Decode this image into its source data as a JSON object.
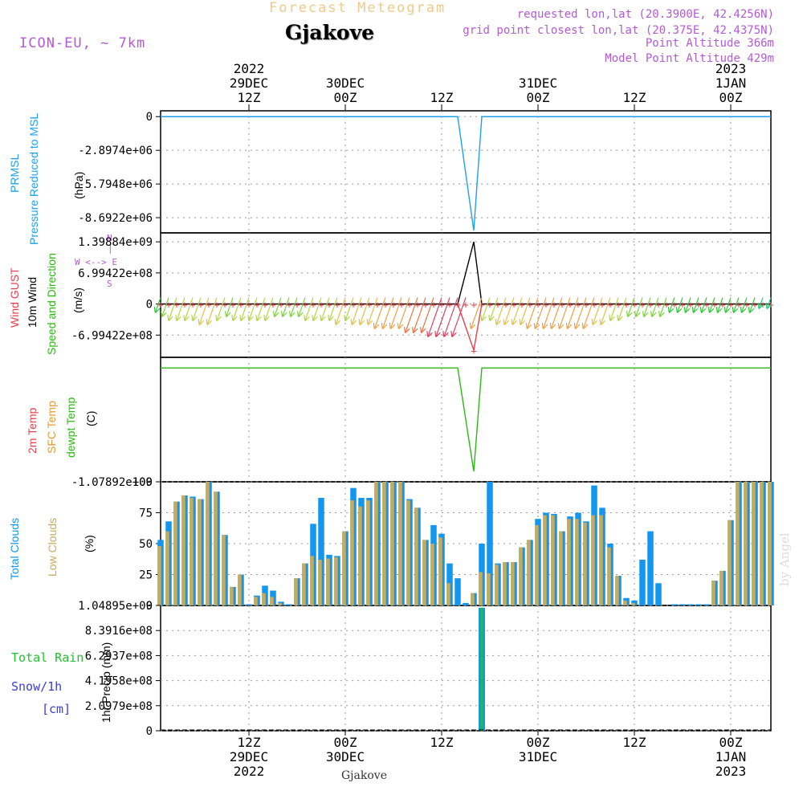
{
  "header": {
    "title": "Forecast Meteogram",
    "station": "Gjakove",
    "model": "ICON-EU, ~ 7km",
    "info_lines": [
      "requested lon,lat (20.3900E, 42.4256N)",
      "grid point closest lon,lat (20.375E, 42.4375N)",
      "Point Altitude 366m",
      "Model Point Altitude 429m"
    ],
    "bottom_station": "Gjakove",
    "watermark": "by Angel"
  },
  "time_axis": {
    "top_labels": [
      {
        "t": 12,
        "lines": [
          "2022",
          "29DEC",
          "12Z"
        ]
      },
      {
        "t": 24,
        "lines": [
          "",
          "30DEC",
          "00Z"
        ]
      },
      {
        "t": 36,
        "lines": [
          "",
          "",
          "12Z"
        ]
      },
      {
        "t": 48,
        "lines": [
          "",
          "31DEC",
          "00Z"
        ]
      },
      {
        "t": 60,
        "lines": [
          "",
          "",
          "12Z"
        ]
      },
      {
        "t": 72,
        "lines": [
          "2023",
          "1JAN",
          "00Z"
        ]
      }
    ],
    "bottom_labels": [
      {
        "t": 12,
        "lines": [
          "12Z",
          "29DEC",
          "2022"
        ]
      },
      {
        "t": 24,
        "lines": [
          "00Z",
          "30DEC",
          ""
        ]
      },
      {
        "t": 36,
        "lines": [
          "12Z",
          "",
          ""
        ]
      },
      {
        "t": 48,
        "lines": [
          "00Z",
          "31DEC",
          ""
        ]
      },
      {
        "t": 60,
        "lines": [
          "12Z",
          "",
          ""
        ]
      },
      {
        "t": 72,
        "lines": [
          "00Z",
          "1JAN",
          "2023"
        ]
      }
    ]
  },
  "panel_labels": {
    "pressure": {
      "line1": "PRMSL",
      "line2": "Pressure Reduced to MSL",
      "unit": "(hPa)"
    },
    "wind": {
      "gust": "Wind GUST",
      "wind10": "10m Wind",
      "speed": "Speed and Direction",
      "unit": "(m/s)",
      "compass_n": "N",
      "compass_bar": "|",
      "compass_we": "W <--> E",
      "compass_s": "S"
    },
    "temp": {
      "t2m": "2m Temp",
      "sfc": "SFC Temp",
      "dewpt": "dewpt Temp",
      "unit": "(C)"
    },
    "clouds": {
      "total": "Total Clouds",
      "low": "Low Clouds",
      "unit": "(%)"
    },
    "precip": {
      "rain": "Total Rain",
      "snow": "Snow/1h",
      "snow_unit": "[cm]",
      "unit": "1hr Precip (mm)"
    }
  },
  "colors": {
    "pressure": "#1ea0f0",
    "gust": "#e8404c",
    "wind_line": "#000000",
    "temp_dew": "#2cb814",
    "total_cloud": "#1296ee",
    "low_cloud": "#c8aa5a",
    "rain": "#22c030",
    "precip_bar": "#1296ee",
    "snow": "#3c3cdc",
    "purple": "#b45ad6"
  },
  "chart_data": [
    {
      "type": "line",
      "name": "pressure",
      "x_range": [
        1,
        77
      ],
      "ylim": [
        -10000000,
        500000
      ],
      "yticks": [
        "0",
        "-2.8974e+06",
        "-5.7948e+06",
        "-8.6922e+06"
      ],
      "ytick_values": [
        0,
        -2897400,
        -5794800,
        -8692200
      ],
      "x": [
        1,
        38.0,
        40.0,
        41.0,
        77
      ],
      "y": [
        0,
        0,
        -9800000,
        0,
        0
      ]
    },
    {
      "type": "line",
      "name": "wind",
      "x_range": [
        1,
        77
      ],
      "ylim": [
        -1200000000,
        1600000000
      ],
      "yticks": [
        "1.39884e+09",
        "6.99422e+08",
        "0",
        "-6.99422e+08"
      ],
      "ytick_values": [
        1398840000,
        699422000,
        0,
        -699422000
      ],
      "wind10_x": [
        1,
        38.0,
        40.0,
        41.0,
        77
      ],
      "wind10_y": [
        0,
        0,
        1398840000,
        0,
        0
      ],
      "gust_x": [
        1,
        38.0,
        40.0,
        41.0,
        77
      ],
      "gust_y": [
        0,
        0,
        -1040000000,
        0,
        0
      ],
      "arrow_lengths_ms": [
        2,
        3,
        4,
        4,
        4,
        4,
        5,
        5,
        4,
        3,
        4,
        4,
        4,
        4,
        4,
        3,
        3,
        3,
        3,
        4,
        4,
        4,
        4,
        5,
        4,
        5,
        5,
        5,
        6,
        6,
        6,
        6,
        7,
        7,
        7,
        8,
        8,
        8,
        8,
        0,
        6,
        4,
        4,
        5,
        5,
        5,
        5,
        6,
        6,
        6,
        6,
        6,
        6,
        6,
        6,
        5,
        5,
        4,
        4,
        3,
        3,
        3,
        3,
        3,
        2,
        2,
        2,
        2,
        2,
        2,
        2,
        2,
        2,
        2,
        2,
        1,
        1
      ]
    },
    {
      "type": "line",
      "name": "temperature",
      "x_range": [
        1,
        77
      ],
      "ylim": [
        -1078920000,
        100000000
      ],
      "yticks": [
        "-1.07892e+09"
      ],
      "ytick_values": [
        -1078920000
      ],
      "x": [
        1,
        38.0,
        40.0,
        41.0,
        77
      ],
      "y": [
        0,
        0,
        -980000000,
        0,
        0
      ]
    },
    {
      "type": "bar",
      "name": "clouds",
      "x_range": [
        1,
        77
      ],
      "ylim": [
        0,
        100
      ],
      "yticks": [
        "100",
        "75",
        "50",
        "25",
        "0"
      ],
      "ytick_values": [
        100,
        75,
        50,
        25,
        0
      ],
      "total": [
        53,
        68,
        84,
        89,
        88,
        86,
        100,
        92,
        57,
        15,
        25,
        1,
        8,
        16,
        12,
        3,
        1,
        22,
        34,
        66,
        87,
        41,
        40,
        60,
        95,
        87,
        87,
        100,
        100,
        100,
        100,
        86,
        79,
        53,
        65,
        58,
        34,
        22,
        2,
        10,
        50,
        100,
        34,
        35,
        35,
        47,
        53,
        70,
        75,
        74,
        60,
        72,
        75,
        68,
        97,
        79,
        50,
        24,
        6,
        4,
        37,
        60,
        18,
        0,
        1,
        1,
        1,
        1,
        1,
        20,
        28,
        69,
        100,
        100,
        100,
        100,
        100
      ],
      "low": [
        48,
        60,
        84,
        89,
        87,
        86,
        100,
        92,
        57,
        15,
        25,
        0,
        7,
        10,
        7,
        2,
        0,
        22,
        34,
        40,
        37,
        38,
        39,
        60,
        85,
        80,
        85,
        100,
        100,
        100,
        100,
        85,
        79,
        53,
        50,
        55,
        18,
        0,
        0,
        10,
        27,
        26,
        33,
        35,
        35,
        47,
        53,
        65,
        73,
        73,
        60,
        70,
        70,
        67,
        73,
        73,
        47,
        24,
        4,
        2,
        0,
        0,
        0,
        0,
        0,
        0,
        0,
        0,
        0,
        20,
        28,
        69,
        100,
        100,
        100,
        100,
        100
      ]
    },
    {
      "type": "bar",
      "name": "precipitation",
      "x_range": [
        1,
        77
      ],
      "ylim": [
        0,
        1048950000
      ],
      "yticks": [
        "1.04895e+09",
        "8.3916e+08",
        "6.2937e+08",
        "4.1958e+08",
        "2.0979e+08",
        "0"
      ],
      "ytick_values": [
        1048950000,
        839160000,
        629370000,
        419580000,
        209790000,
        0
      ],
      "bars": [
        {
          "x": 41,
          "value": 1030000000
        }
      ]
    }
  ]
}
